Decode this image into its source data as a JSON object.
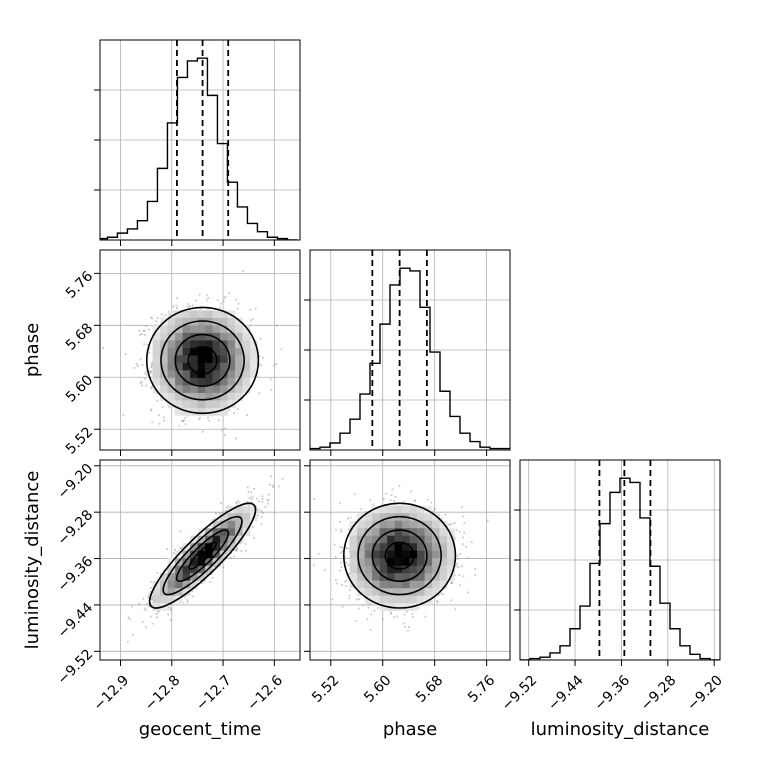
{
  "chart_data": {
    "type": "corner",
    "grid": true,
    "parameters": [
      {
        "name": "geocent_time",
        "axis_label": "geocent_time",
        "ticks": [
          "−12.9",
          "−12.8",
          "−12.7",
          "−12.6"
        ],
        "tick_values": [
          -12.9,
          -12.8,
          -12.7,
          -12.6
        ],
        "range": [
          -12.94,
          -12.55
        ],
        "quantiles": [
          -12.79,
          -12.74,
          -12.69
        ],
        "histogram": {
          "bin_start": -12.945,
          "bin_width": 0.0195,
          "counts": [
            1,
            2,
            5,
            8,
            14,
            28,
            52,
            85,
            118,
            130,
            132,
            105,
            70,
            42,
            24,
            12,
            6,
            2,
            1,
            0
          ]
        }
      },
      {
        "name": "phase",
        "axis_label": "phase",
        "ticks": [
          "5.52",
          "5.60",
          "5.68",
          "5.76"
        ],
        "tick_values": [
          5.52,
          5.6,
          5.68,
          5.76
        ],
        "range": [
          5.488,
          5.796
        ],
        "quantiles": [
          5.584,
          5.626,
          5.668
        ],
        "histogram": {
          "bin_start": 5.488,
          "bin_width": 0.0154,
          "counts": [
            1,
            2,
            5,
            12,
            22,
            40,
            62,
            90,
            118,
            130,
            128,
            102,
            70,
            42,
            24,
            12,
            6,
            2,
            1,
            1
          ]
        }
      },
      {
        "name": "luminosity_distance",
        "axis_label": "luminosity_distance",
        "ticks": [
          "−9.52",
          "−9.44",
          "−9.36",
          "−9.28",
          "−9.20"
        ],
        "tick_values": [
          -9.52,
          -9.44,
          -9.36,
          -9.28,
          -9.2
        ],
        "range": [
          -9.535,
          -9.19
        ],
        "quantiles": [
          -9.398,
          -9.355,
          -9.31
        ],
        "histogram": {
          "bin_start": -9.535,
          "bin_width": 0.01725,
          "counts": [
            0,
            1,
            2,
            5,
            10,
            22,
            38,
            68,
            96,
            118,
            128,
            125,
            100,
            66,
            40,
            22,
            10,
            4,
            1,
            0
          ]
        }
      }
    ],
    "pairs": [
      {
        "x": "geocent_time",
        "y": "phase",
        "mean": [
          -12.74,
          5.626
        ],
        "sd": [
          0.048,
          0.04
        ],
        "correlation": 0.0
      },
      {
        "x": "geocent_time",
        "y": "luminosity_distance",
        "mean": [
          -12.74,
          -9.355
        ],
        "sd": [
          0.048,
          0.042
        ],
        "correlation": 0.88
      },
      {
        "x": "phase",
        "y": "luminosity_distance",
        "mean": [
          5.626,
          -9.355
        ],
        "sd": [
          0.04,
          0.042
        ],
        "correlation": 0.0
      }
    ]
  }
}
